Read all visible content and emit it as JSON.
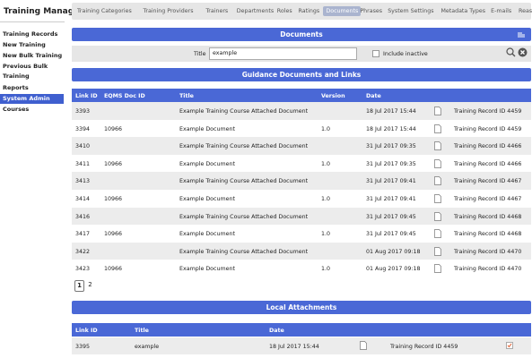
{
  "sidebar": {
    "title": "Training Manager",
    "items": [
      "Training Records",
      "New Training",
      "New Bulk Training",
      "Previous Bulk Training",
      "Reports",
      "System Admin",
      "Courses"
    ],
    "active": 5
  },
  "tabs": {
    "items": [
      "Training Categories",
      "Training Providers",
      "Trainers",
      "Departments",
      "Roles",
      "Ratings",
      "Documents",
      "Phrases",
      "System Settings",
      "Metadata Types",
      "E-mails",
      "Reasons"
    ],
    "active": 6
  },
  "documents": {
    "title": "Documents"
  },
  "filter": {
    "label": "Title",
    "value": "example",
    "checkbox_label": "Include inactive"
  },
  "guidance": {
    "title": "Guidance Documents and Links",
    "columns": [
      "Link ID",
      "EQMS Doc ID",
      "Title",
      "Version",
      "Date"
    ],
    "rows": [
      [
        "3393",
        null,
        "Example Training Course Attached Document",
        null,
        "18 Jul 2017 15:44",
        "Training Record ID 4459"
      ],
      [
        "3394",
        "10966",
        "Example Document",
        "1.0",
        "18 Jul 2017 15:44",
        "Training Record ID 4459"
      ],
      [
        "3410",
        null,
        "Example Training Course Attached Document",
        null,
        "31 Jul 2017 09:35",
        "Training Record ID 4466"
      ],
      [
        "3411",
        "10966",
        "Example Document",
        "1.0",
        "31 Jul 2017 09:35",
        "Training Record ID 4466"
      ],
      [
        "3413",
        null,
        "Example Training Course Attached Document",
        null,
        "31 Jul 2017 09:41",
        "Training Record ID 4467"
      ],
      [
        "3414",
        "10966",
        "Example Document",
        "1.0",
        "31 Jul 2017 09:41",
        "Training Record ID 4467"
      ],
      [
        "3416",
        null,
        "Example Training Course Attached Document",
        null,
        "31 Jul 2017 09:45",
        "Training Record ID 4468"
      ],
      [
        "3417",
        "10966",
        "Example Document",
        "1.0",
        "31 Jul 2017 09:45",
        "Training Record ID 4468"
      ],
      [
        "3422",
        null,
        "Example Training Course Attached Document",
        null,
        "01 Aug 2017 09:18",
        "Training Record ID 4470"
      ],
      [
        "3423",
        "10966",
        "Example Document",
        "1.0",
        "01 Aug 2017 09:18",
        "Training Record ID 4470"
      ]
    ]
  },
  "pagination": {
    "pages": [
      "1",
      "2"
    ],
    "current": 0
  },
  "local": {
    "title": "Local Attachments",
    "columns": [
      "Link ID",
      "Title",
      "Date"
    ],
    "rows": [
      [
        "3395",
        "example",
        "18 Jul 2017 15:44",
        "Training Record ID 4459"
      ]
    ]
  }
}
